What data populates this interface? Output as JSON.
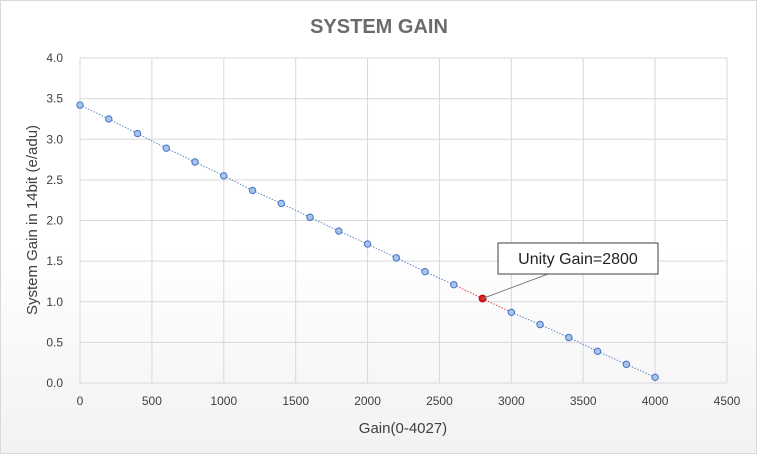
{
  "chart_data": {
    "type": "scatter",
    "title": "SYSTEM GAIN",
    "xlabel": "Gain(0-4027)",
    "ylabel": "System Gain in 14bit (e/adu)",
    "xlim": [
      0,
      4500
    ],
    "ylim": [
      0,
      4.0
    ],
    "xticks": [
      0,
      500,
      1000,
      1500,
      2000,
      2500,
      3000,
      3500,
      4000,
      4500
    ],
    "yticks": [
      0.0,
      0.5,
      1.0,
      1.5,
      2.0,
      2.5,
      3.0,
      3.5,
      4.0
    ],
    "ytick_labels": [
      "0.0",
      "0.5",
      "1.0",
      "1.5",
      "2.0",
      "2.5",
      "3.0",
      "3.5",
      "4.0"
    ],
    "grid": true,
    "series": [
      {
        "x": [
          0,
          200,
          400,
          600,
          800,
          1000,
          1200,
          1400,
          1600,
          1800,
          2000,
          2200,
          2400,
          2600,
          3000,
          3200,
          3400,
          3600,
          3800,
          4000
        ],
        "y": [
          3.42,
          3.25,
          3.07,
          2.89,
          2.72,
          2.55,
          2.37,
          2.21,
          2.04,
          1.87,
          1.71,
          1.54,
          1.37,
          1.21,
          0.87,
          0.72,
          0.56,
          0.39,
          0.23,
          0.07
        ],
        "color": "#4472c4",
        "marker_fill": "#a9c4ea"
      }
    ],
    "highlight": {
      "x": 2800,
      "y": 1.04,
      "color": "#e02020"
    },
    "annotations": [
      {
        "text": "Unity Gain=2800",
        "x": 2800,
        "y": 1.04
      }
    ]
  }
}
